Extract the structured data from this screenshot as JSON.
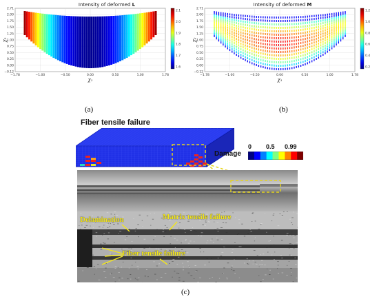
{
  "panel_a": {
    "title_prefix": "Intensity of deformed ",
    "title_bold": "L",
    "caption": "(a)",
    "xlabel": "χ₁",
    "ylabel": "χ₂",
    "x_ticks": [
      "−1.78",
      "−1.00",
      "−0.50",
      "0.00",
      "0.50",
      "1.00",
      "1.78"
    ],
    "y_ticks": [
      "−0.12",
      "0.00",
      "0.25",
      "0.50",
      "0.75",
      "1.00",
      "1.25",
      "1.50",
      "1.75",
      "2.00",
      "2.71"
    ],
    "colorbar_ticks": [
      "2.1",
      "2.0",
      "1.9",
      "1.8",
      "1.7",
      "1.6"
    ]
  },
  "panel_b": {
    "title_prefix": "Intensity of deformed ",
    "title_bold": "M",
    "caption": "(b)",
    "xlabel": "χ₁",
    "ylabel": "χ₂",
    "x_ticks": [
      "−1.78",
      "−1.00",
      "−0.50",
      "0.00",
      "0.50",
      "1.00",
      "1.78"
    ],
    "y_ticks": [
      "−0.12",
      "0.00",
      "0.25",
      "0.50",
      "0.75",
      "1.00",
      "1.25",
      "1.50",
      "1.75",
      "2.00",
      "2.71"
    ],
    "colorbar_ticks": [
      "1.2",
      "1.0",
      "0.8",
      "0.6",
      "0.4",
      "0.2"
    ]
  },
  "panel_c": {
    "caption": "(c)",
    "fiber_title": "Fiber tensile failure",
    "damage_label": "Damage",
    "damage_ticks": [
      "0",
      "0.5",
      "0.99"
    ],
    "annotations": {
      "delamination": "Delamination",
      "matrix": "Matrix tensile failure",
      "fiber": "Fiber tensile failure"
    }
  },
  "colors": {
    "fe_blue": "#1f2fe6",
    "annotation_yellow": "#f4e71b"
  }
}
